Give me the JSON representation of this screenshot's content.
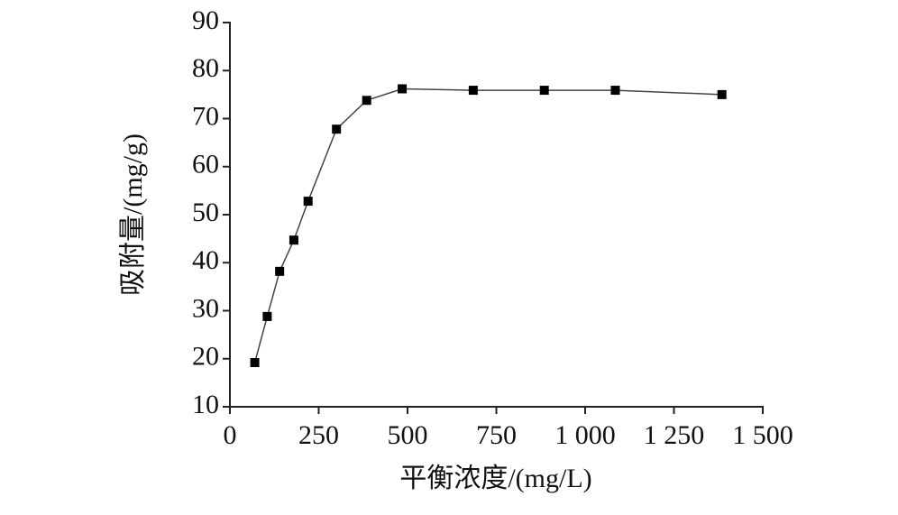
{
  "chart_data": {
    "type": "line",
    "x_label": "平衡浓度/(mg/L)",
    "y_label": "吸附量/(mg/g)",
    "series": [
      {
        "color": "#000000",
        "x": [
          70,
          105,
          140,
          180,
          220,
          300,
          385,
          485,
          685,
          885,
          1085,
          1385
        ],
        "values": [
          19.2,
          28.8,
          38.2,
          44.7,
          52.8,
          67.8,
          73.8,
          76.2,
          75.9,
          75.9,
          75.9,
          75.0
        ]
      }
    ],
    "xlim": [
      0,
      1500
    ],
    "xticks": [
      0,
      250,
      500,
      750,
      {
        "value": 1000,
        "label": "1 000"
      },
      {
        "value": 1250,
        "label": "1 250"
      },
      {
        "value": 1500,
        "label": "1 500"
      }
    ],
    "ylim": [
      10,
      90
    ],
    "yticks": [
      10,
      20,
      30,
      40,
      50,
      60,
      70,
      80,
      90
    ],
    "grid": false
  }
}
